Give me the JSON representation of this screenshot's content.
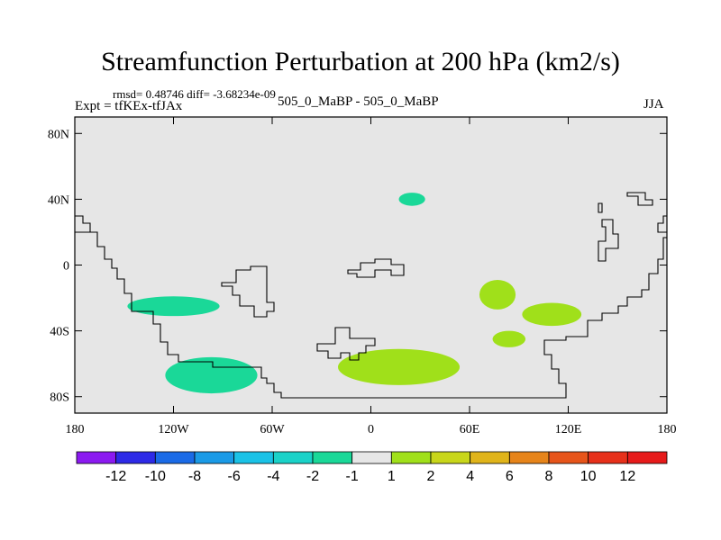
{
  "chart_data": {
    "type": "heatmap",
    "title": "Streamfunction Perturbation at 200 hPa (km2/s)",
    "annotations": {
      "rmsd": "rmsd= 0.48746 diff= -3.68234e-09",
      "expt": "Expt = tfKEx-tfJAx",
      "case": "505_0_MaBP - 505_0_MaBP",
      "season": "JJA"
    },
    "x_ticks": [
      "180",
      "120W",
      "60W",
      "0",
      "60E",
      "120E",
      "180"
    ],
    "y_ticks": [
      "80N",
      "40N",
      "0",
      "40S",
      "80S"
    ],
    "xlim": [
      -180,
      180
    ],
    "ylim": [
      -90,
      90
    ],
    "grid": false,
    "background_color": "#e6e6e6",
    "coastline_color": "#000000",
    "colorbar": {
      "levels": [
        "-12",
        "-10",
        "-8",
        "-6",
        "-4",
        "-2",
        "-1",
        "1",
        "2",
        "4",
        "6",
        "8",
        "10",
        "12"
      ],
      "colors": [
        "#8b1af0",
        "#2d2ae6",
        "#1a6ae6",
        "#1a9ae6",
        "#1ac2e6",
        "#1ad2c8",
        "#1ad898",
        "#e6e6e6",
        "#a0e01a",
        "#c8d61a",
        "#e0b41a",
        "#e6841a",
        "#e6541a",
        "#e6301a",
        "#e61a1a"
      ]
    },
    "contour_regions": [
      {
        "level": "-1",
        "color": "#1ad898",
        "center": [
          -120,
          -25
        ],
        "extent": [
          28,
          6
        ]
      },
      {
        "level": "-1",
        "color": "#1ad898",
        "center": [
          -97,
          -67
        ],
        "extent": [
          28,
          11
        ]
      },
      {
        "level": "-1",
        "color": "#1ad898",
        "center": [
          25,
          40
        ],
        "extent": [
          8,
          4
        ]
      },
      {
        "level": "1",
        "color": "#a0e01a",
        "center": [
          17,
          -62
        ],
        "extent": [
          37,
          11
        ]
      },
      {
        "level": "1",
        "color": "#a0e01a",
        "center": [
          77,
          -18
        ],
        "extent": [
          11,
          9
        ]
      },
      {
        "level": "1",
        "color": "#a0e01a",
        "center": [
          110,
          -30
        ],
        "extent": [
          18,
          7
        ]
      },
      {
        "level": "1",
        "color": "#a0e01a",
        "center": [
          84,
          -45
        ],
        "extent": [
          10,
          5
        ]
      }
    ]
  }
}
